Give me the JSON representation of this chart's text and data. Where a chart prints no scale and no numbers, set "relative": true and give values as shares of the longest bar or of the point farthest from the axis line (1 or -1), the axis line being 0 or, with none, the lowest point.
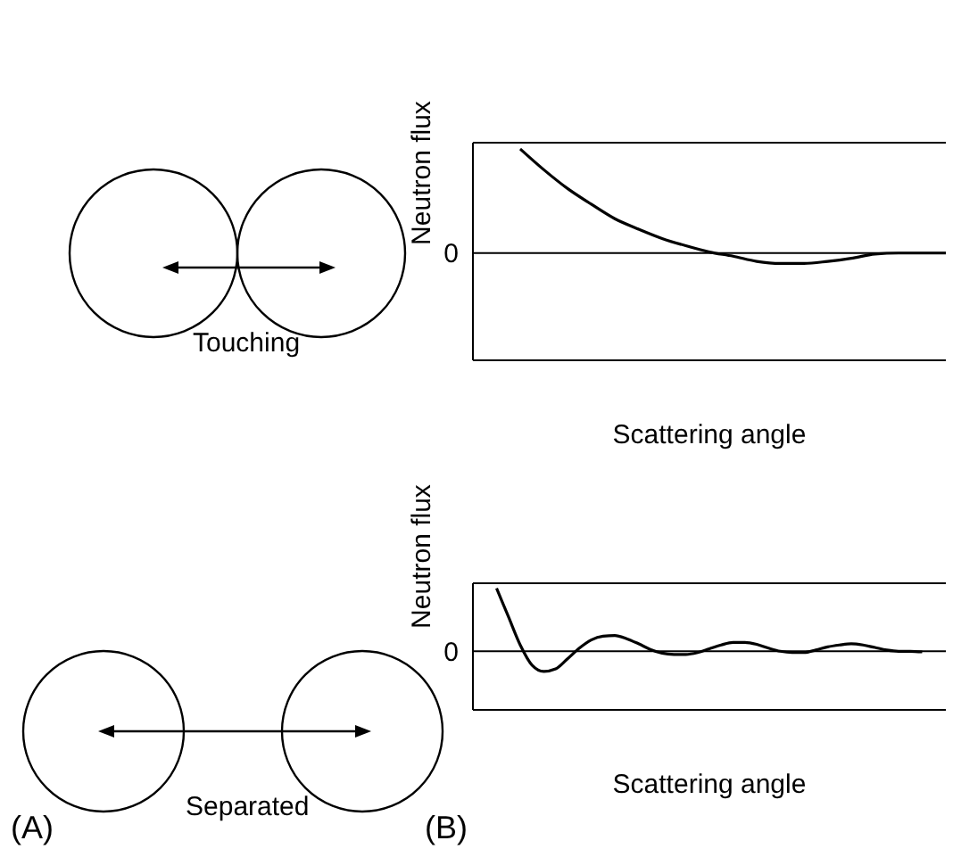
{
  "chart_data": [
    {
      "type": "line",
      "relative": true,
      "xlabel": "Scattering angle",
      "ylabel": "Neutron flux",
      "color": "#000000",
      "marker": "none",
      "grid": false,
      "legend": false,
      "tick_labels": false,
      "categories": [
        null,
        null,
        null,
        null,
        null,
        null,
        null,
        null,
        null,
        null,
        null,
        null,
        null,
        null,
        null,
        null,
        null,
        null,
        null,
        null,
        null
      ],
      "values": [
        null,
        null,
        1.0,
        0.8,
        0.62,
        0.47,
        0.33,
        0.23,
        0.14,
        0.07,
        0.01,
        -0.03,
        -0.08,
        -0.1,
        -0.1,
        -0.08,
        -0.05,
        -0.01,
        0,
        0,
        0
      ],
      "ref_lines": [
        {
          "axis": "y",
          "value": 0,
          "label": "0",
          "color": "#000000"
        }
      ],
      "annotations": [
        "Touching"
      ]
    },
    {
      "type": "line",
      "relative": true,
      "xlabel": "Scattering angle",
      "ylabel": "Neutron flux",
      "color": "#000000",
      "marker": "none",
      "grid": false,
      "legend": false,
      "tick_labels": false,
      "categories": [
        null,
        null,
        null,
        null,
        null,
        null,
        null,
        null,
        null,
        null,
        null,
        null,
        null,
        null,
        null,
        null,
        null,
        null,
        null,
        null,
        null,
        null,
        null,
        null,
        null,
        null,
        null,
        null,
        null,
        null,
        null,
        null,
        null,
        null,
        null,
        null,
        null,
        null,
        null,
        null,
        null
      ],
      "values": [
        null,
        null,
        1.0,
        0.55,
        0.1,
        -0.22,
        -0.32,
        -0.28,
        -0.12,
        0.05,
        0.18,
        0.24,
        0.25,
        0.2,
        0.12,
        0.03,
        -0.03,
        -0.05,
        -0.05,
        -0.02,
        0.04,
        0.1,
        0.14,
        0.14,
        0.11,
        0.05,
        0,
        -0.02,
        -0.02,
        0.02,
        0.07,
        0.1,
        0.12,
        0.1,
        0.06,
        0.02,
        0,
        0,
        -0.01,
        null,
        null
      ],
      "ref_lines": [
        {
          "axis": "y",
          "value": 0,
          "label": "0",
          "color": "#000000"
        }
      ],
      "annotations": [
        "Separated",
        "(A)",
        "(B)"
      ]
    }
  ]
}
